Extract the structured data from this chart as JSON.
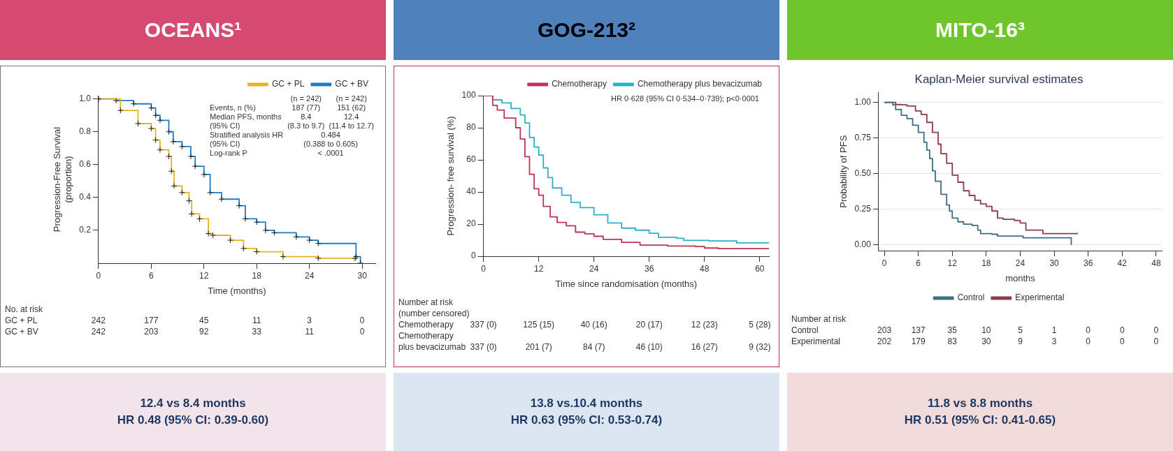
{
  "chart_data": [
    {
      "type": "step",
      "title": "OCEANS¹",
      "xlabel": "Time (months)",
      "ylabel": "Progression-Free Survival\n(proportion)",
      "xlim": [
        0,
        31.5
      ],
      "xticks": [
        0,
        6,
        12,
        18,
        24,
        30
      ],
      "ylim": [
        0,
        1.02
      ],
      "yticks": [
        0.2,
        0.4,
        0.6,
        0.8,
        {
          "value": 1,
          "label": "1.0"
        }
      ],
      "legend": "top right",
      "marker": "cross",
      "series": [
        {
          "name": "GC + PL",
          "color": "#e6b422",
          "x": [
            0,
            2.5,
            4.5,
            6,
            6.5,
            7,
            8,
            8.3,
            8.6,
            9.5,
            10.3,
            10.6,
            11.5,
            12.5,
            13,
            15,
            16.5,
            18,
            21,
            25,
            29.2
          ],
          "values": [
            1,
            0.93,
            0.85,
            0.82,
            0.75,
            0.69,
            0.65,
            0.56,
            0.47,
            0.43,
            0.38,
            0.3,
            0.27,
            0.18,
            0.17,
            0.14,
            0.09,
            0.07,
            0.04,
            0.03,
            0.03
          ]
        },
        {
          "name": "GC + BV",
          "color": "#1a7dc8",
          "x": [
            0,
            2,
            4,
            6,
            6.5,
            7,
            8,
            8.5,
            9.5,
            10.5,
            11,
            12,
            12.7,
            14,
            16,
            16.7,
            18,
            19,
            20,
            22.5,
            24,
            25,
            29.3,
            29.8
          ],
          "values": [
            1,
            0.99,
            0.97,
            0.945,
            0.9,
            0.87,
            0.8,
            0.74,
            0.71,
            0.65,
            0.59,
            0.54,
            0.43,
            0.39,
            0.35,
            0.27,
            0.25,
            0.2,
            0.185,
            0.16,
            0.14,
            0.12,
            0.04,
            0
          ]
        }
      ],
      "annotations": [
        "12.4 vs 8.4 months",
        "HR 0.48 (95% CI: 0.39-0.60)",
        "\t(n = 242)\t(n = 242)",
        "Events, n (%)\t187 (77)\t151 (62)",
        "Median PFS, months\t8.4\t12.4",
        "(95% CI)\t(8.3 to 9.7)\t(11.4 to 12.7)",
        "Stratified analysis HR\t0.484",
        "(95% CI)\t(0.388 to 0.605)",
        "Log-rank P\t< .0001",
        "No. at risk",
        "GC + PL\t242\t177\t45\t11\t3\t0",
        "GC + BV\t242\t203\t92\t33\t11\t0"
      ]
    },
    {
      "type": "step",
      "title": "GOG-213²",
      "xlabel": "Time since randomisation (months)",
      "ylabel": "Progression- free survival (%)",
      "xlim": [
        0,
        62
      ],
      "xticks": [
        0,
        12,
        24,
        36,
        48,
        60
      ],
      "ylim": [
        0,
        100
      ],
      "yticks": [
        0,
        20,
        40,
        60,
        80,
        100
      ],
      "legend": "top right",
      "series": [
        {
          "name": "Chemotherapy",
          "color": "#c0305a",
          "x": [
            0,
            1,
            2,
            3,
            4.5,
            7,
            8,
            9,
            10,
            11,
            12,
            13,
            14.5,
            16,
            18,
            20,
            22,
            24,
            26,
            30,
            34,
            40,
            46,
            48,
            51,
            62
          ],
          "values": [
            100,
            100,
            94,
            91,
            86,
            80,
            73,
            62,
            51,
            42,
            38,
            31,
            24.5,
            21,
            19,
            15,
            14,
            12.4,
            10.5,
            8.6,
            6.9,
            6.4,
            6,
            5.1,
            4.7,
            4.7
          ]
        },
        {
          "name": "Chemotherapy plus bevacizumab",
          "color": "#2ab0c8",
          "x": [
            0,
            2,
            4,
            6,
            8,
            9,
            10,
            11,
            12,
            13,
            14,
            15,
            17,
            19,
            21,
            24,
            27,
            30,
            33,
            36,
            38,
            42,
            43.5,
            49,
            55,
            62
          ],
          "values": [
            100,
            97.4,
            95.5,
            92,
            88,
            83,
            74,
            68,
            63,
            55,
            49,
            42.5,
            38,
            33.5,
            30.3,
            25.8,
            20.7,
            17.5,
            16.2,
            14.3,
            11.8,
            11.1,
            9.8,
            9.5,
            8.3,
            8.3
          ]
        }
      ],
      "annotations": [
        "13.8 vs.10.4 months",
        "HR 0.63 (95% CI: 0.53-0.74)",
        "HR 0·628 (95% CI 0·534–0·739); p<0·0001",
        "Number at risk",
        "(number censored)",
        "Chemotherapy\t337 (0)\t125 (15)\t40 (16)\t20 (17)\t12 (23)\t5 (28)",
        "Chemotherapy plus bevacizumab\t337 (0)\t201 (7)\t84 (7)\t46 (10)\t16 (27)\t9 (32)"
      ]
    },
    {
      "type": "step",
      "title": "MITO-16³",
      "subtitle": "Kaplan-Meier survival estimates",
      "xlabel": "months",
      "ylabel": "Probability of PFS",
      "xlim": [
        -1,
        49
      ],
      "xticks": [
        0,
        6,
        12,
        18,
        24,
        30,
        36,
        42,
        48
      ],
      "ylim": [
        -0.04,
        1.07
      ],
      "yticks": [
        {
          "value": 0,
          "label": "0.00"
        },
        0.25,
        {
          "value": 0.5,
          "label": "0.50"
        },
        0.75,
        {
          "value": 1,
          "label": "1.00"
        }
      ],
      "grid": "y",
      "legend": "bottom",
      "series": [
        {
          "name": "Control",
          "color": "#3c6e80",
          "x": [
            0,
            1,
            1.5,
            2,
            3,
            4,
            5,
            6,
            7,
            7.5,
            8,
            8.5,
            9,
            10,
            11,
            11.5,
            12,
            13,
            14,
            15.5,
            16.5,
            17,
            19,
            20,
            24.5,
            33,
            33.01
          ],
          "values": [
            1,
            1,
            0.983,
            0.95,
            0.91,
            0.886,
            0.84,
            0.79,
            0.72,
            0.665,
            0.606,
            0.52,
            0.447,
            0.355,
            0.28,
            0.238,
            0.188,
            0.162,
            0.146,
            0.137,
            0.104,
            0.079,
            0.075,
            0.062,
            0.05,
            0.05,
            0
          ]
        },
        {
          "name": "Experimental",
          "color": "#8e3b4e",
          "x": [
            0,
            2,
            3,
            4,
            5.5,
            6.5,
            7.5,
            8.5,
            9.5,
            10,
            11,
            12,
            13,
            14,
            15,
            16,
            17,
            18,
            19,
            20,
            21,
            23,
            24,
            25,
            28,
            34.2
          ],
          "values": [
            1,
            0.985,
            0.983,
            0.975,
            0.94,
            0.916,
            0.86,
            0.79,
            0.707,
            0.64,
            0.573,
            0.49,
            0.44,
            0.38,
            0.347,
            0.313,
            0.288,
            0.27,
            0.238,
            0.188,
            0.18,
            0.171,
            0.154,
            0.104,
            0.079,
            0.079
          ]
        }
      ],
      "annotations": [
        "11.8 vs 8.8 months",
        "HR 0.51 (95% CI: 0.41-0.65)",
        "Number at risk",
        "Control\t203\t137\t35\t10\t5\t1\t0\t0\t0",
        "Experimental\t202\t179\t83\t30\t9\t3\t0\t0\t0"
      ]
    }
  ]
}
